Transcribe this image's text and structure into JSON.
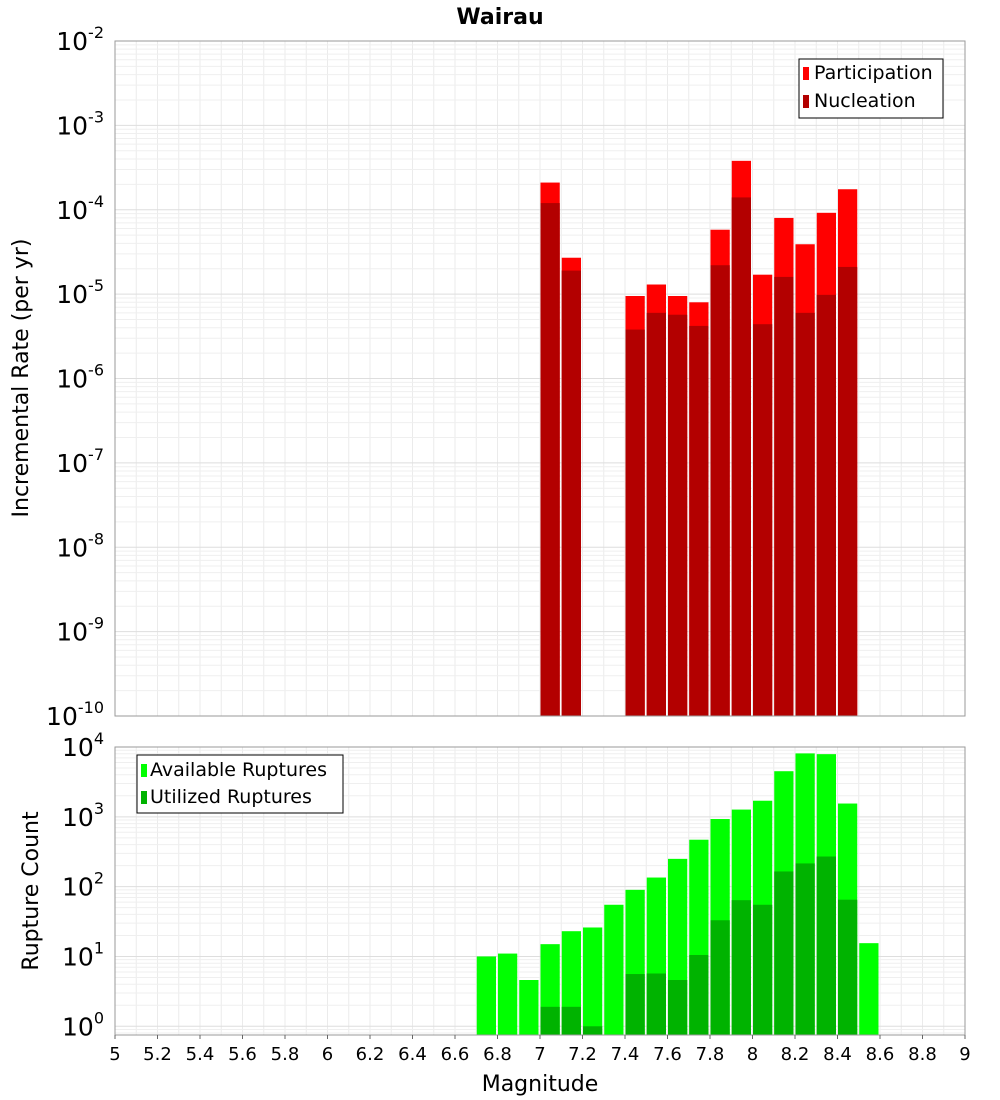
{
  "chart_data": [
    {
      "type": "bar",
      "title": "Wairau",
      "xlabel": "",
      "ylabel": "Incremental Rate (per yr)",
      "yscale": "log",
      "ylim": [
        1e-10,
        0.01
      ],
      "xlim": [
        5,
        9
      ],
      "bar_width": 0.1,
      "ytick_exponents": [
        "-10",
        "-9",
        "-8",
        "-7",
        "-6",
        "-5",
        "-4",
        "-3",
        "-2"
      ],
      "ytick_base": "10",
      "grid": true,
      "legend": {
        "position": "top-right",
        "entries": [
          "Participation",
          "Nucleation"
        ]
      },
      "x": [
        7.0,
        7.1,
        7.4,
        7.5,
        7.6,
        7.7,
        7.8,
        7.9,
        8.0,
        8.1,
        8.2,
        8.3,
        8.4
      ],
      "series": [
        {
          "name": "Participation",
          "color": "#ff0000",
          "values": [
            0.00021,
            2.7e-05,
            9.5e-06,
            1.3e-05,
            9.5e-06,
            8e-06,
            5.8e-05,
            0.00038,
            1.7e-05,
            8e-05,
            3.9e-05,
            9.2e-05,
            0.000175
          ]
        },
        {
          "name": "Nucleation",
          "color": "#b30000",
          "values": [
            0.00012,
            1.9e-05,
            3.8e-06,
            6e-06,
            5.7e-06,
            4.2e-06,
            2.2e-05,
            0.00014,
            4.4e-06,
            1.6e-05,
            6e-06,
            9.8e-06,
            2.1e-05
          ]
        }
      ]
    },
    {
      "type": "bar",
      "title": "",
      "xlabel": "Magnitude",
      "ylabel": "Rupture Count",
      "yscale": "log",
      "ylim": [
        0.75,
        10000
      ],
      "xlim": [
        5,
        9
      ],
      "bar_width": 0.1,
      "ytick_exponents": [
        "0",
        "1",
        "2",
        "3",
        "4"
      ],
      "ytick_base": "10",
      "xtick_labels": [
        "5",
        "5.2",
        "5.4",
        "5.6",
        "5.8",
        "6",
        "6.2",
        "6.4",
        "6.6",
        "6.8",
        "7",
        "7.2",
        "7.4",
        "7.6",
        "7.8",
        "8",
        "8.2",
        "8.4",
        "8.6",
        "8.8",
        "9"
      ],
      "grid": true,
      "legend": {
        "position": "top-left",
        "entries": [
          "Available Ruptures",
          "Utilized Ruptures"
        ]
      },
      "x": [
        6.7,
        6.8,
        6.9,
        7.0,
        7.1,
        7.2,
        7.3,
        7.4,
        7.5,
        7.6,
        7.7,
        7.8,
        7.9,
        8.0,
        8.1,
        8.2,
        8.3,
        8.4,
        8.5
      ],
      "series": [
        {
          "name": "Available Ruptures",
          "color": "#00ff00",
          "values": [
            10,
            11,
            4.6,
            15,
            23,
            26,
            55,
            90,
            135,
            250,
            470,
            930,
            1270,
            1700,
            4500,
            8100,
            7900,
            1550,
            15.5
          ]
        },
        {
          "name": "Utilized Ruptures",
          "color": "#00b300",
          "values": [
            null,
            null,
            null,
            1.9,
            1.9,
            1,
            null,
            5.6,
            5.7,
            4.6,
            10.5,
            33,
            64,
            55,
            165,
            215,
            270,
            65,
            null
          ]
        }
      ]
    }
  ]
}
